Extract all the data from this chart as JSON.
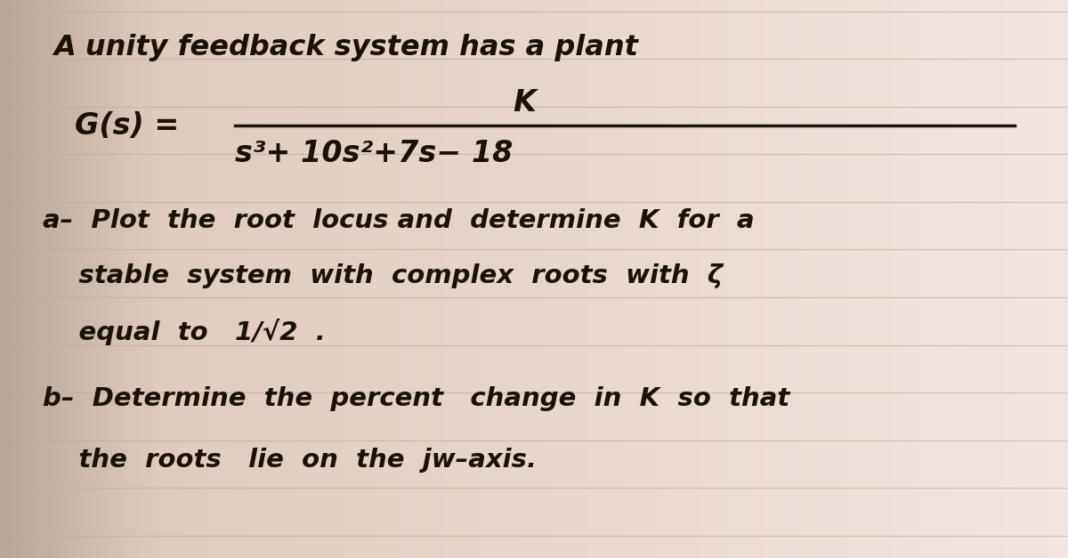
{
  "bg_color_left": "#d4c4b8",
  "bg_color_right": "#e8ddd4",
  "bg_color_center": "#f0ebe6",
  "line_color": "#b8a898",
  "text_color": "#1a1208",
  "title_line": "A unity feedback system has a plant",
  "transfer_func_label": "G(s) =",
  "numerator": "K",
  "denominator": "s³+ 10s²+7s− 18",
  "part_a_line1": "a–  Plot  the  root  locus and  determine  K  for  a",
  "part_a_line2": "    stable  system  with  complex  roots  with  ζ",
  "part_a_line3": "    equal  to   1/√2  .",
  "part_b_line1": "b–  Determine  the  percent   change  in  K  so  that",
  "part_b_line2": "    the  roots   lie  on  the  jw–axis.",
  "num_lines": 12,
  "figsize": [
    12.0,
    6.27
  ],
  "dpi": 100
}
